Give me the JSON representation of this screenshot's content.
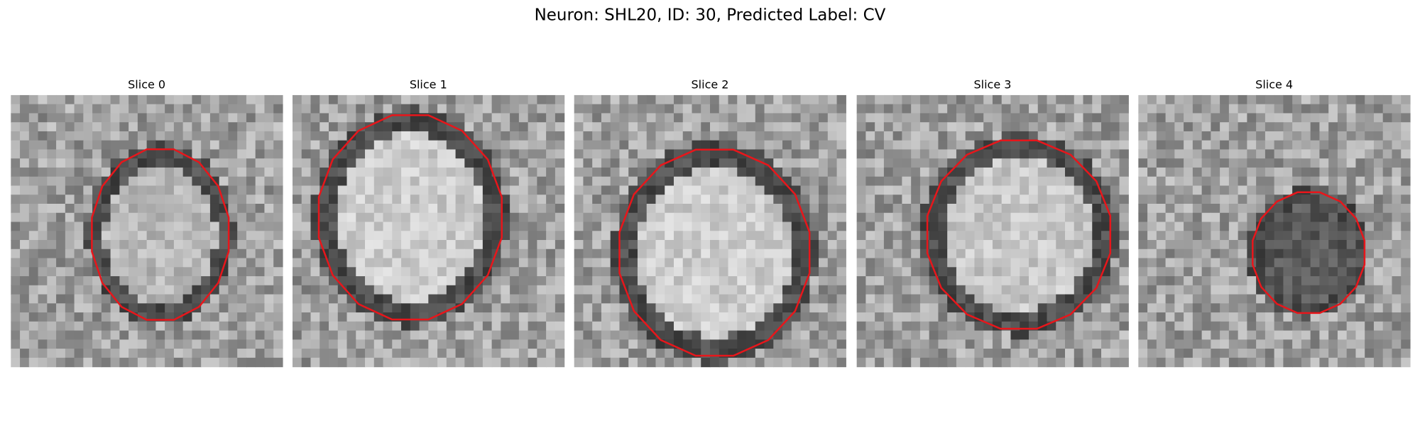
{
  "title": "Neuron: SHL20, ID: 30, Predicted Label: CV",
  "panels": [
    {
      "title": "Slice 0"
    },
    {
      "title": "Slice 1"
    },
    {
      "title": "Slice 2"
    },
    {
      "title": "Slice 3"
    },
    {
      "title": "Slice 4"
    }
  ]
}
